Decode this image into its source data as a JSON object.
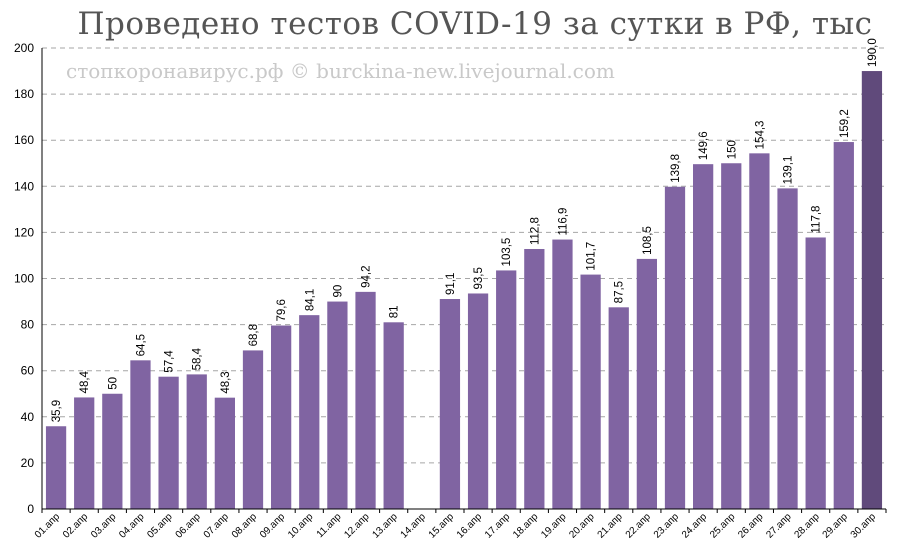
{
  "chart_data": {
    "type": "bar",
    "title": "Проведено тестов COVID-19 за сутки в РФ, тыс",
    "watermark": "стопкоронавирус.рф © burckina-new.livejournal.com",
    "categories": [
      "01.апр",
      "02.апр",
      "03.апр",
      "04.апр",
      "05.апр",
      "06.апр",
      "07.апр",
      "08.апр",
      "09.апр",
      "10.апр",
      "11.апр",
      "12.апр",
      "13.апр",
      "14.апр",
      "15.апр",
      "16.апр",
      "17.апр",
      "18.апр",
      "19.апр",
      "20.апр",
      "21.апр",
      "22.апр",
      "23.апр",
      "24.апр",
      "25.апр",
      "26.апр",
      "27.апр",
      "28.апр",
      "29.апр",
      "30.апр"
    ],
    "values": [
      35.9,
      48.4,
      50,
      64.5,
      57.4,
      58.4,
      48.3,
      68.8,
      79.6,
      84.1,
      90,
      94.2,
      81,
      null,
      91.1,
      93.5,
      103.5,
      112.8,
      116.9,
      101.7,
      87.5,
      108.5,
      139.8,
      149.6,
      150,
      154.3,
      139.1,
      117.8,
      159.2,
      190.0
    ],
    "value_labels": [
      "35,9",
      "48,4",
      "50",
      "64,5",
      "57,4",
      "58,4",
      "48,3",
      "68,8",
      "79,6",
      "84,1",
      "90",
      "94,2",
      "81",
      "",
      "91,1",
      "93,5",
      "103,5",
      "112,8",
      "116,9",
      "101,7",
      "87,5",
      "108,5",
      "139,8",
      "149,6",
      "150",
      "154,3",
      "139,1",
      "117,8",
      "159,2",
      "190,0"
    ],
    "ylim": [
      0,
      200
    ],
    "yticks": [
      0,
      20,
      40,
      60,
      80,
      100,
      120,
      140,
      160,
      180,
      200
    ],
    "grid": true,
    "colors": {
      "bar": "#8064a2",
      "highlight": "#604a7b"
    },
    "highlight_index": 29
  }
}
